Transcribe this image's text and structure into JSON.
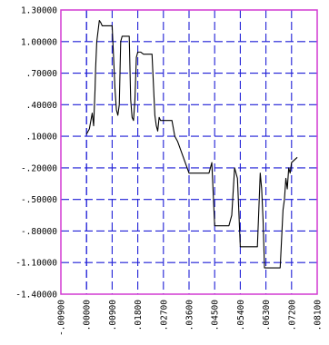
{
  "chart_data": {
    "type": "line",
    "title": "",
    "xlabel": "",
    "ylabel": "",
    "x_tick_labels": [
      "-.00900",
      ".00000",
      ".00900",
      ".01800",
      ".02700",
      ".03600",
      ".04500",
      ".05400",
      ".06300",
      ".07200",
      ".08100"
    ],
    "y_tick_labels": [
      "1.30000",
      "1.00000",
      ".70000",
      ".40000",
      ".10000",
      "-.20000",
      "-.50000",
      "-.80000",
      "-1.10000",
      "-1.40000"
    ],
    "xlim": [
      -0.009,
      0.081
    ],
    "ylim": [
      -1.4,
      1.3
    ],
    "grid": true,
    "colors": {
      "frame": "#d23ad2",
      "grid": "#1f1fd6",
      "line": "#000000",
      "axis_line": "#000000"
    },
    "series": [
      {
        "x": [
          0.0,
          0.001,
          0.002,
          0.0025,
          0.003,
          0.0032,
          0.0036,
          0.0045,
          0.005,
          0.0055,
          0.006,
          0.009,
          0.01,
          0.0105,
          0.011,
          0.0115,
          0.012,
          0.0125,
          0.015,
          0.0155,
          0.016,
          0.0165,
          0.017,
          0.0175,
          0.018,
          0.019,
          0.02,
          0.023,
          0.024,
          0.0245,
          0.025,
          0.0255,
          0.026,
          0.0265,
          0.03,
          0.031,
          0.032,
          0.034,
          0.036,
          0.038,
          0.043,
          0.044,
          0.045,
          0.05,
          0.051,
          0.052,
          0.053,
          0.054,
          0.055,
          0.06,
          0.0605,
          0.061,
          0.0615,
          0.062,
          0.0625,
          0.068,
          0.069,
          0.0695,
          0.07,
          0.0705,
          0.071,
          0.0715,
          0.072,
          0.074
        ],
        "y": [
          0.12,
          0.17,
          0.32,
          0.2,
          0.55,
          0.75,
          1.0,
          1.2,
          1.18,
          1.15,
          1.15,
          1.15,
          0.55,
          0.35,
          0.3,
          0.4,
          1.0,
          1.05,
          1.05,
          0.45,
          0.28,
          0.25,
          0.45,
          0.85,
          0.9,
          0.9,
          0.88,
          0.88,
          0.3,
          0.2,
          0.15,
          0.28,
          0.25,
          0.25,
          0.25,
          0.1,
          0.05,
          -0.1,
          -0.25,
          -0.25,
          -0.25,
          -0.15,
          -0.75,
          -0.75,
          -0.65,
          -0.2,
          -0.3,
          -0.95,
          -0.95,
          -0.95,
          -0.6,
          -0.25,
          -0.4,
          -0.7,
          -1.15,
          -1.15,
          -0.6,
          -0.5,
          -0.3,
          -0.4,
          -0.2,
          -0.25,
          -0.15,
          -0.1
        ]
      }
    ]
  }
}
